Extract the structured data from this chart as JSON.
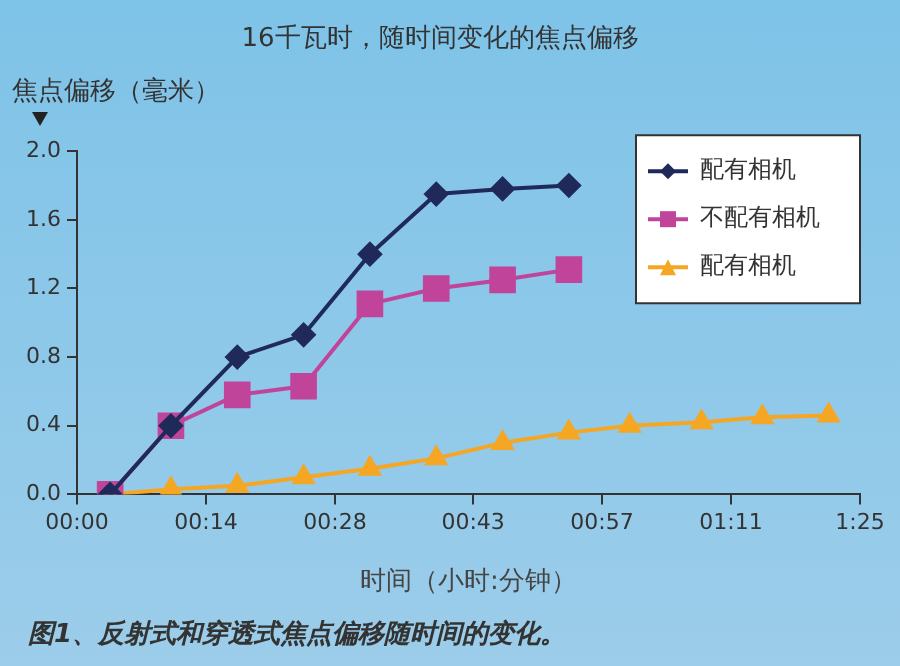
{
  "chart_data": {
    "type": "line",
    "title": "16千瓦时，随时间变化的焦点偏移",
    "xlabel": "时间（小时:分钟）",
    "ylabel": "焦点偏移（毫米）",
    "annotations": [
      "图1、反射式和穿透式焦点偏移随时间的变化。"
    ],
    "xlim": [
      0,
      1.4167
    ],
    "xticks": [
      {
        "value": 0,
        "label": "00:00"
      },
      {
        "value": 0.2333,
        "label": "00:14"
      },
      {
        "value": 0.4667,
        "label": "00:28"
      },
      {
        "value": 0.7167,
        "label": "00:43"
      },
      {
        "value": 0.95,
        "label": "00:57"
      },
      {
        "value": 1.1833,
        "label": "01:11"
      },
      {
        "value": 1.4167,
        "label": "1:25"
      }
    ],
    "ylim": [
      0,
      2
    ],
    "yticks": [
      {
        "value": 0,
        "label": "0.0"
      },
      {
        "value": 0.4,
        "label": "0.4"
      },
      {
        "value": 0.8,
        "label": "0.8"
      },
      {
        "value": 1.2,
        "label": "1.2"
      },
      {
        "value": 1.6,
        "label": "1.6"
      },
      {
        "value": 2,
        "label": "2.0"
      }
    ],
    "grid": false,
    "legend": "top right",
    "line_style": "solid",
    "series": [
      {
        "name": "配有相机",
        "color": "#1f2a5a",
        "marker": "diamond",
        "x": [
          0.06,
          0.17,
          0.29,
          0.41,
          0.53,
          0.65,
          0.77,
          0.89
        ],
        "values": [
          0,
          0.4,
          0.8,
          0.93,
          1.4,
          1.75,
          1.78,
          1.8
        ]
      },
      {
        "name": "不配有相机",
        "color": "#c0449a",
        "marker": "square",
        "x": [
          0.06,
          0.17,
          0.29,
          0.41,
          0.53,
          0.65,
          0.77,
          0.89
        ],
        "values": [
          0,
          0.4,
          0.58,
          0.63,
          1.11,
          1.2,
          1.25,
          1.31
        ]
      },
      {
        "name": "配有相机",
        "color": "#f5a623",
        "marker": "triangle",
        "x": [
          0.06,
          0.17,
          0.29,
          0.41,
          0.53,
          0.65,
          0.77,
          0.89,
          1.0,
          1.13,
          1.24,
          1.36
        ],
        "values": [
          0,
          0.03,
          0.05,
          0.1,
          0.15,
          0.21,
          0.3,
          0.36,
          0.4,
          0.42,
          0.45,
          0.46
        ]
      }
    ]
  }
}
